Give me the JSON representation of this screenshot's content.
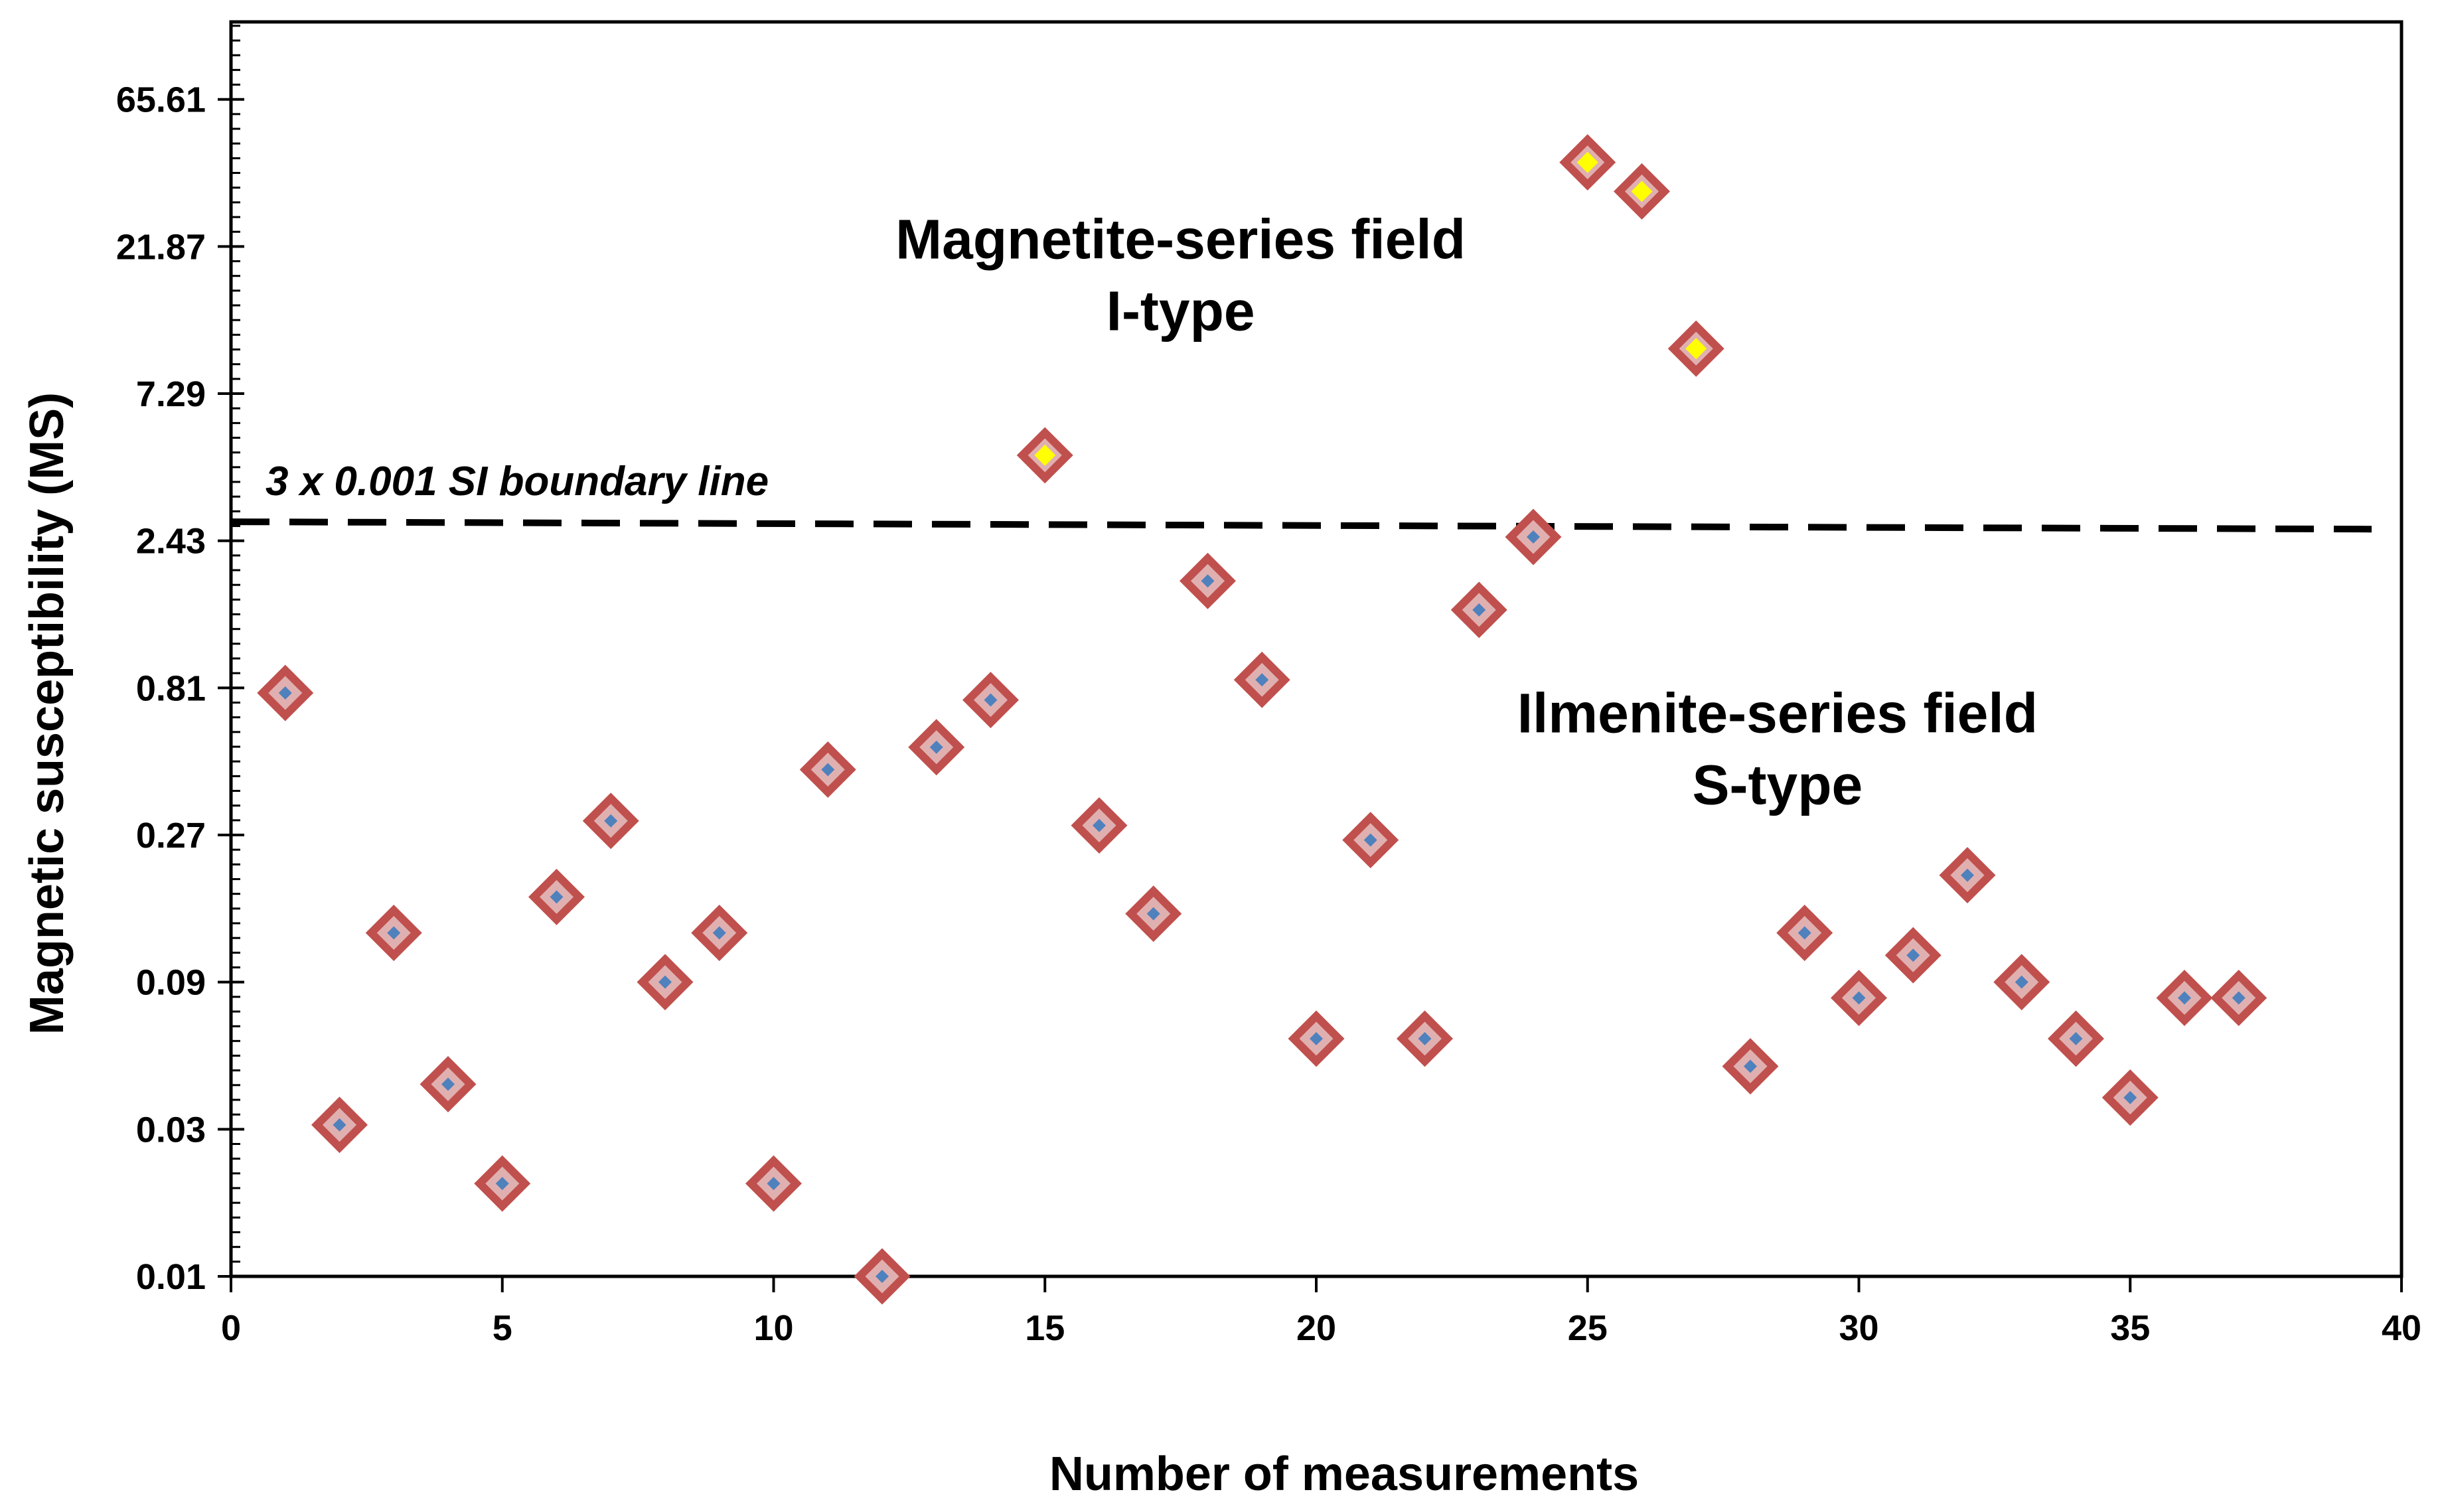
{
  "chart_data": {
    "type": "scatter",
    "title": "",
    "xlabel": "Number of measurements",
    "ylabel": "Magnetic susceptibility (MS)",
    "xlim": [
      0,
      40
    ],
    "ylim": [
      0.01,
      117
    ],
    "yscale": "log",
    "x_ticks": [
      0,
      5,
      10,
      15,
      20,
      25,
      30,
      35,
      40
    ],
    "y_ticks": [
      {
        "value": 0.01,
        "label": "0.01"
      },
      {
        "value": 0.03,
        "label": "0.03"
      },
      {
        "value": 0.09,
        "label": "0.09"
      },
      {
        "value": 0.27,
        "label": "0.27"
      },
      {
        "value": 0.81,
        "label": "0.81"
      },
      {
        "value": 2.43,
        "label": "2.43"
      },
      {
        "value": 7.29,
        "label": "7.29"
      },
      {
        "value": 21.87,
        "label": "21.87"
      },
      {
        "value": 65.61,
        "label": "65.61"
      }
    ],
    "marker_colors": {
      "edge": "#c0504d",
      "ilmenite_fill": "#4f81bd",
      "magnetite_fill": "#ffff00"
    },
    "series": [
      {
        "name": "Ilmenite-series (S-type)",
        "marker": "diamond",
        "points": [
          {
            "x": 1,
            "y": 0.78
          },
          {
            "x": 2,
            "y": 0.031
          },
          {
            "x": 3,
            "y": 0.13
          },
          {
            "x": 4,
            "y": 0.042
          },
          {
            "x": 5,
            "y": 0.02
          },
          {
            "x": 6,
            "y": 0.17
          },
          {
            "x": 7,
            "y": 0.3
          },
          {
            "x": 8,
            "y": 0.09
          },
          {
            "x": 9,
            "y": 0.13
          },
          {
            "x": 10,
            "y": 0.02
          },
          {
            "x": 11,
            "y": 0.44
          },
          {
            "x": 12,
            "y": 0.01
          },
          {
            "x": 13,
            "y": 0.52
          },
          {
            "x": 14,
            "y": 0.74
          },
          {
            "x": 16,
            "y": 0.29
          },
          {
            "x": 17,
            "y": 0.15
          },
          {
            "x": 18,
            "y": 1.8
          },
          {
            "x": 19,
            "y": 0.86
          },
          {
            "x": 20,
            "y": 0.059
          },
          {
            "x": 21,
            "y": 0.26
          },
          {
            "x": 22,
            "y": 0.059
          },
          {
            "x": 23,
            "y": 1.45
          },
          {
            "x": 24,
            "y": 2.5
          },
          {
            "x": 28,
            "y": 0.048
          },
          {
            "x": 29,
            "y": 0.13
          },
          {
            "x": 30,
            "y": 0.08
          },
          {
            "x": 31,
            "y": 0.11
          },
          {
            "x": 32,
            "y": 0.2
          },
          {
            "x": 33,
            "y": 0.09
          },
          {
            "x": 34,
            "y": 0.059
          },
          {
            "x": 35,
            "y": 0.038
          },
          {
            "x": 36,
            "y": 0.08
          },
          {
            "x": 37,
            "y": 0.08
          }
        ]
      },
      {
        "name": "Magnetite-series (I-type)",
        "marker": "diamond",
        "points": [
          {
            "x": 15,
            "y": 4.6
          },
          {
            "x": 25,
            "y": 41
          },
          {
            "x": 26,
            "y": 33
          },
          {
            "x": 27,
            "y": 10.2
          }
        ]
      }
    ],
    "boundary_line": {
      "label": "3 x 0.001 SI  boundary line",
      "y_start": 2.8,
      "y_end": 2.65,
      "style": "dashed",
      "color": "#000000"
    },
    "annotations": [
      {
        "lines": [
          "Magnetite-series field",
          "I-type"
        ],
        "x": 17.5,
        "y": 20
      },
      {
        "lines": [
          "Ilmenite-series field",
          "S-type"
        ],
        "x": 28.5,
        "y": 0.58
      }
    ]
  }
}
